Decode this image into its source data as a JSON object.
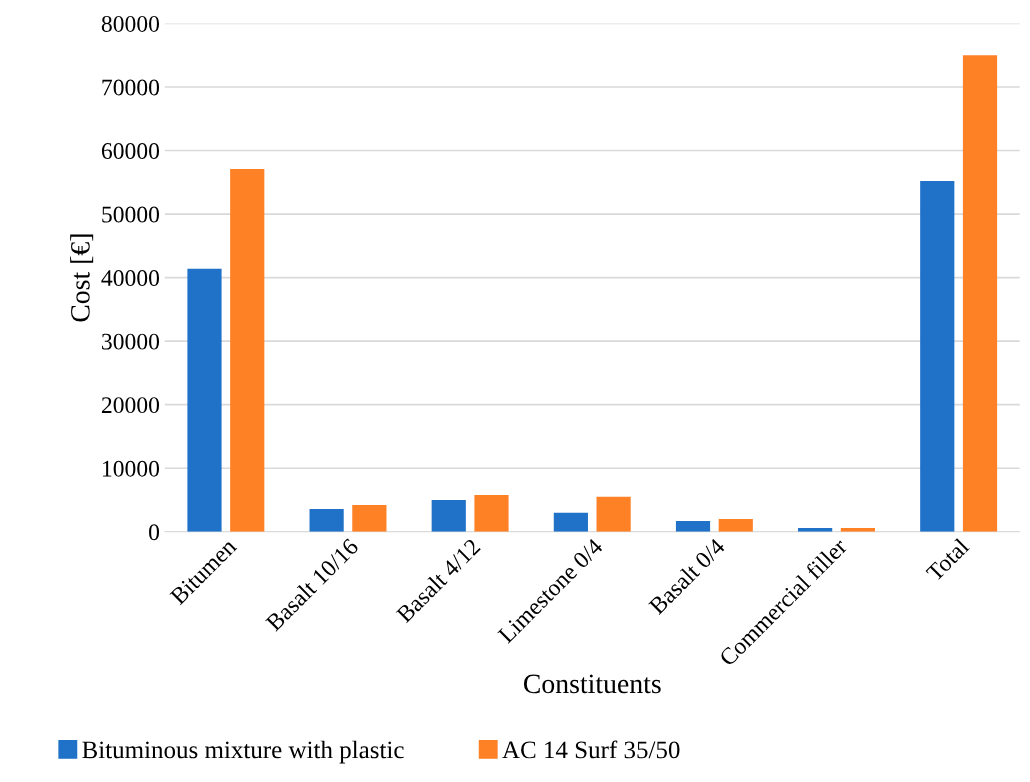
{
  "chart_data": {
    "type": "bar",
    "xlabel": "Constituents",
    "ylabel": "Cost [€]",
    "categories": [
      "Bitumen",
      "Basalt 10/16",
      "Basalt 4/12",
      "Limestone 0/4",
      "Basalt 0/4",
      "Commercial filler",
      "Total"
    ],
    "series": [
      {
        "name": "Bituminous mixture with plastic",
        "color": "#1f72c8",
        "values": [
          41400,
          3600,
          5000,
          3000,
          1700,
          600,
          55200
        ]
      },
      {
        "name": "AC 14 Surf 35/50",
        "color": "#ff8126",
        "values": [
          57100,
          4200,
          5800,
          5500,
          2000,
          600,
          75000
        ]
      }
    ],
    "ylim": [
      0,
      80000
    ],
    "yticks": [
      0,
      10000,
      20000,
      30000,
      40000,
      50000,
      60000,
      70000,
      80000
    ],
    "grid": "y",
    "legend": "bottom"
  }
}
